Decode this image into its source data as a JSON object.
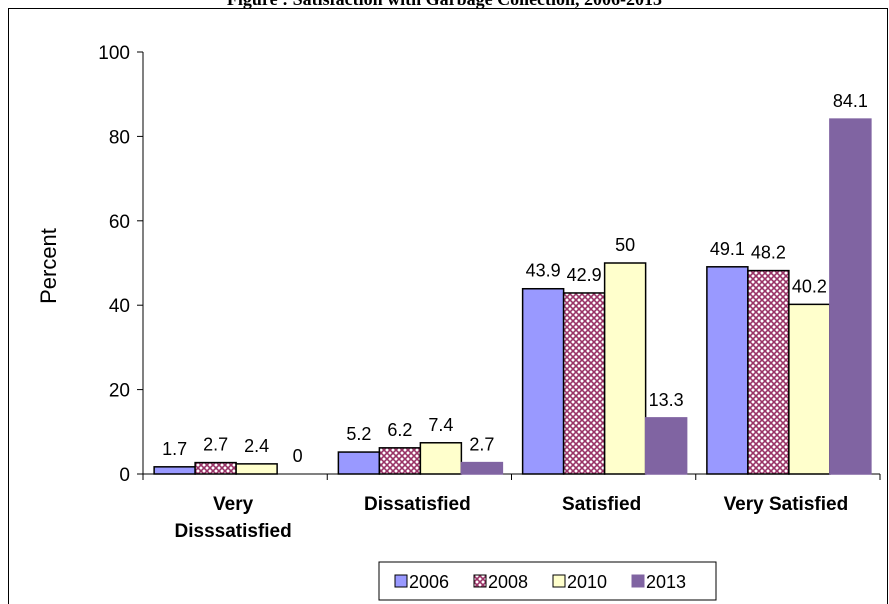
{
  "chart_data": {
    "type": "bar",
    "title": "Figure : Satisfaction with Garbage Collection, 2006-2013",
    "xlabel": "",
    "ylabel": "Percent",
    "ylim": [
      0,
      100
    ],
    "yticks": [
      0,
      20,
      40,
      60,
      80,
      100
    ],
    "categories": [
      [
        "Very",
        "Disssatisfied"
      ],
      [
        "Dissatisfied"
      ],
      [
        "Satisfied"
      ],
      [
        "Very Satisfied"
      ]
    ],
    "series": [
      {
        "name": "2006",
        "values": [
          1.7,
          5.2,
          43.9,
          49.1
        ],
        "color": "#9999ff",
        "pattern": "solid"
      },
      {
        "name": "2008",
        "values": [
          2.7,
          6.2,
          42.9,
          48.2
        ],
        "color": "#993366",
        "pattern": "crosshatch"
      },
      {
        "name": "2010",
        "values": [
          2.4,
          7.4,
          50,
          40.2
        ],
        "color": "#ffffcc",
        "pattern": "solid"
      },
      {
        "name": "2013",
        "values": [
          0,
          2.7,
          13.3,
          84.1
        ],
        "color": "#8064a2",
        "pattern": "solid"
      }
    ],
    "data_labels": [
      [
        "1.7",
        "5.2",
        "43.9",
        "49.1"
      ],
      [
        "2.7",
        "6.2",
        "42.9",
        "48.2"
      ],
      [
        "2.4",
        "7.4",
        "50",
        "40.2"
      ],
      [
        "0",
        "2.7",
        "13.3",
        "84.1"
      ]
    ],
    "grid": false,
    "legend_position": "bottom"
  }
}
